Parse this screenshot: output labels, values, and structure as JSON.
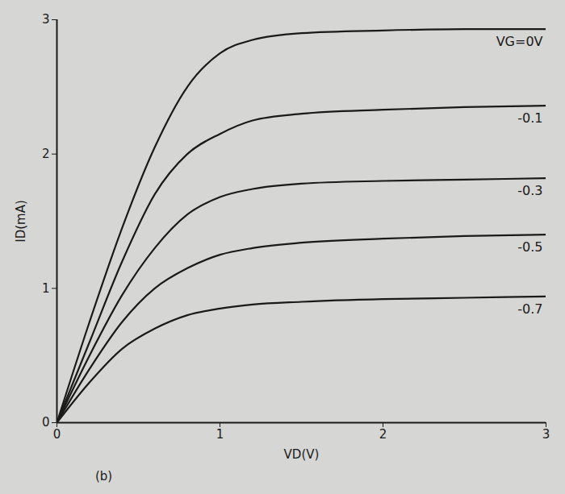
{
  "chart_data": {
    "type": "line",
    "xlabel": "VD(V)",
    "ylabel": "ID(mA)",
    "caption": "(b)",
    "x": [
      0,
      0.2,
      0.4,
      0.6,
      0.8,
      1.0,
      1.2,
      1.5,
      2.0,
      2.5,
      3.0
    ],
    "series": [
      {
        "name": "VG=0V",
        "color": "#1a1a1a",
        "values": [
          0,
          0.75,
          1.45,
          2.05,
          2.5,
          2.75,
          2.85,
          2.9,
          2.92,
          2.93,
          2.93
        ]
      },
      {
        "name": "-0.1",
        "color": "#1a1a1a",
        "values": [
          0,
          0.6,
          1.2,
          1.7,
          2.0,
          2.15,
          2.25,
          2.3,
          2.33,
          2.35,
          2.36
        ]
      },
      {
        "name": "-0.3",
        "color": "#1a1a1a",
        "values": [
          0,
          0.5,
          0.95,
          1.3,
          1.55,
          1.68,
          1.74,
          1.78,
          1.8,
          1.81,
          1.82
        ]
      },
      {
        "name": "-0.5",
        "color": "#1a1a1a",
        "values": [
          0,
          0.4,
          0.75,
          1.0,
          1.15,
          1.25,
          1.3,
          1.34,
          1.37,
          1.39,
          1.4
        ]
      },
      {
        "name": "-0.7",
        "color": "#1a1a1a",
        "values": [
          0,
          0.3,
          0.55,
          0.7,
          0.8,
          0.85,
          0.88,
          0.9,
          0.92,
          0.93,
          0.94
        ]
      }
    ],
    "xlim": [
      0,
      3
    ],
    "ylim": [
      0,
      3
    ],
    "xticks": [
      0,
      1,
      2,
      3
    ],
    "yticks": [
      0,
      1,
      2,
      3
    ],
    "grid": false
  }
}
